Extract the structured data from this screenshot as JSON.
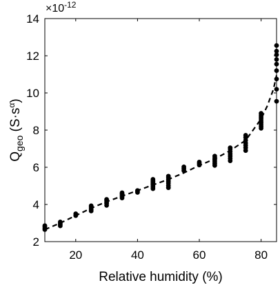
{
  "chart_data": {
    "type": "scatter",
    "title": "",
    "xlabel": "Relative humidity (%)",
    "ylabel": "Q_geo (S·s^α)",
    "ylabel_parts": {
      "q": "Q",
      "sub": "geo",
      "open": " (S",
      "dot": "·",
      "s": "s",
      "alpha": "α",
      "close": ")"
    },
    "exponent_label": {
      "prefix": "×10",
      "power": "-12"
    },
    "xlim": [
      10,
      85
    ],
    "ylim": [
      2,
      14
    ],
    "x_ticks": [
      20,
      40,
      60,
      80
    ],
    "y_ticks": [
      2,
      4,
      6,
      8,
      10,
      12,
      14
    ],
    "grid": false,
    "legend": "none",
    "colors": {
      "points": "#000000",
      "fit_line": "#000000"
    },
    "series": [
      {
        "type": "scatter",
        "x": [
          10,
          10,
          10,
          10,
          15,
          15,
          15,
          15,
          20,
          20,
          25,
          25,
          25,
          25,
          25,
          30,
          30,
          30,
          30,
          30,
          35,
          35,
          35,
          35,
          35,
          40,
          40,
          40,
          45,
          45,
          45,
          45,
          45,
          45,
          45,
          50,
          50,
          50,
          50,
          50,
          50,
          50,
          55,
          55,
          55,
          60,
          60,
          60,
          65,
          65,
          65,
          65,
          65,
          65,
          70,
          70,
          70,
          70,
          70,
          70,
          70,
          75,
          75,
          75,
          75,
          75,
          75,
          75,
          80,
          80,
          80,
          80,
          80,
          80,
          80,
          80,
          80,
          85,
          85,
          85,
          85,
          85,
          85,
          85,
          85,
          85
        ],
        "y": [
          2.65,
          2.72,
          2.8,
          2.86,
          2.85,
          2.92,
          3.0,
          3.06,
          3.4,
          3.5,
          3.65,
          3.72,
          3.8,
          3.87,
          3.93,
          3.95,
          4.05,
          4.12,
          4.2,
          4.27,
          4.35,
          4.43,
          4.5,
          4.57,
          4.63,
          4.65,
          4.7,
          4.75,
          4.85,
          4.95,
          5.05,
          5.12,
          5.2,
          5.27,
          5.35,
          4.9,
          5.02,
          5.15,
          5.25,
          5.35,
          5.45,
          5.52,
          5.82,
          5.92,
          6.02,
          6.12,
          6.2,
          6.28,
          6.1,
          6.2,
          6.3,
          6.4,
          6.5,
          6.6,
          6.35,
          6.48,
          6.6,
          6.72,
          6.85,
          6.98,
          7.05,
          6.9,
          7.05,
          7.18,
          7.3,
          7.45,
          7.6,
          7.72,
          8.1,
          8.2,
          8.3,
          8.4,
          8.5,
          8.6,
          8.7,
          8.8,
          8.9,
          9.55,
          10.2,
          10.75,
          11.2,
          11.55,
          11.8,
          12.05,
          12.25,
          12.55
        ]
      },
      {
        "type": "line",
        "style": "dashed",
        "x": [
          10,
          15,
          20,
          25,
          30,
          35,
          40,
          45,
          50,
          55,
          60,
          65,
          70,
          75,
          80,
          82,
          84,
          85
        ],
        "y": [
          2.65,
          3.0,
          3.4,
          3.8,
          4.15,
          4.45,
          4.75,
          5.05,
          5.35,
          5.7,
          6.1,
          6.45,
          6.9,
          7.45,
          8.6,
          9.3,
          10.2,
          10.95
        ]
      }
    ]
  }
}
